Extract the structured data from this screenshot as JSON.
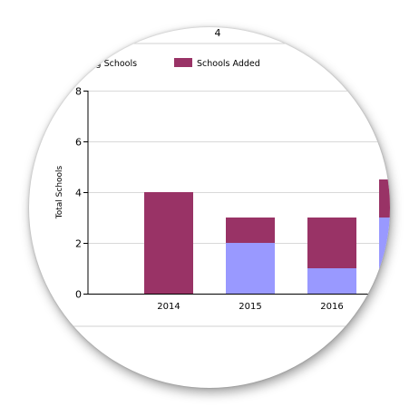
{
  "page_label": "4",
  "chart_data": {
    "type": "bar",
    "stacked": true,
    "categories": [
      "2014",
      "2015",
      "2016"
    ],
    "series": [
      {
        "name": "Continuing Schools",
        "color": "#9999ff",
        "values": [
          0,
          2,
          1
        ]
      },
      {
        "name": "Schools Added",
        "color": "#993366",
        "values": [
          4,
          1,
          2
        ]
      }
    ],
    "partial_next_bar": {
      "continuing": 3,
      "added": 1.5
    },
    "ylabel": "Total Schools",
    "xlabel": "",
    "ylim": [
      0,
      8
    ],
    "yticks": [
      0,
      2,
      4,
      6,
      8
    ],
    "grid": true,
    "legend_placement": "top"
  }
}
